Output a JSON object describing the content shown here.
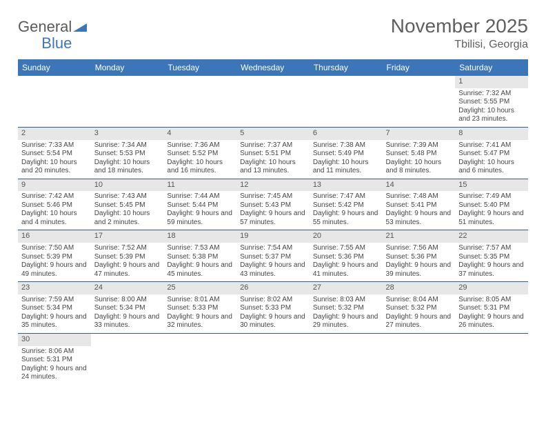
{
  "brand": {
    "part1": "General",
    "part2": "Blue"
  },
  "title": "November 2025",
  "location": "Tbilisi, Georgia",
  "colors": {
    "header_bg": "#3d76b8",
    "row_divider": "#2f5c94",
    "daynum_bg": "#e7e7e7"
  },
  "dayHeaders": [
    "Sunday",
    "Monday",
    "Tuesday",
    "Wednesday",
    "Thursday",
    "Friday",
    "Saturday"
  ],
  "weeks": [
    [
      null,
      null,
      null,
      null,
      null,
      null,
      {
        "n": "1",
        "sr": "7:32 AM",
        "ss": "5:55 PM",
        "dl": "10 hours and 23 minutes."
      }
    ],
    [
      {
        "n": "2",
        "sr": "7:33 AM",
        "ss": "5:54 PM",
        "dl": "10 hours and 20 minutes."
      },
      {
        "n": "3",
        "sr": "7:34 AM",
        "ss": "5:53 PM",
        "dl": "10 hours and 18 minutes."
      },
      {
        "n": "4",
        "sr": "7:36 AM",
        "ss": "5:52 PM",
        "dl": "10 hours and 16 minutes."
      },
      {
        "n": "5",
        "sr": "7:37 AM",
        "ss": "5:51 PM",
        "dl": "10 hours and 13 minutes."
      },
      {
        "n": "6",
        "sr": "7:38 AM",
        "ss": "5:49 PM",
        "dl": "10 hours and 11 minutes."
      },
      {
        "n": "7",
        "sr": "7:39 AM",
        "ss": "5:48 PM",
        "dl": "10 hours and 8 minutes."
      },
      {
        "n": "8",
        "sr": "7:41 AM",
        "ss": "5:47 PM",
        "dl": "10 hours and 6 minutes."
      }
    ],
    [
      {
        "n": "9",
        "sr": "7:42 AM",
        "ss": "5:46 PM",
        "dl": "10 hours and 4 minutes."
      },
      {
        "n": "10",
        "sr": "7:43 AM",
        "ss": "5:45 PM",
        "dl": "10 hours and 2 minutes."
      },
      {
        "n": "11",
        "sr": "7:44 AM",
        "ss": "5:44 PM",
        "dl": "9 hours and 59 minutes."
      },
      {
        "n": "12",
        "sr": "7:45 AM",
        "ss": "5:43 PM",
        "dl": "9 hours and 57 minutes."
      },
      {
        "n": "13",
        "sr": "7:47 AM",
        "ss": "5:42 PM",
        "dl": "9 hours and 55 minutes."
      },
      {
        "n": "14",
        "sr": "7:48 AM",
        "ss": "5:41 PM",
        "dl": "9 hours and 53 minutes."
      },
      {
        "n": "15",
        "sr": "7:49 AM",
        "ss": "5:40 PM",
        "dl": "9 hours and 51 minutes."
      }
    ],
    [
      {
        "n": "16",
        "sr": "7:50 AM",
        "ss": "5:39 PM",
        "dl": "9 hours and 49 minutes."
      },
      {
        "n": "17",
        "sr": "7:52 AM",
        "ss": "5:39 PM",
        "dl": "9 hours and 47 minutes."
      },
      {
        "n": "18",
        "sr": "7:53 AM",
        "ss": "5:38 PM",
        "dl": "9 hours and 45 minutes."
      },
      {
        "n": "19",
        "sr": "7:54 AM",
        "ss": "5:37 PM",
        "dl": "9 hours and 43 minutes."
      },
      {
        "n": "20",
        "sr": "7:55 AM",
        "ss": "5:36 PM",
        "dl": "9 hours and 41 minutes."
      },
      {
        "n": "21",
        "sr": "7:56 AM",
        "ss": "5:36 PM",
        "dl": "9 hours and 39 minutes."
      },
      {
        "n": "22",
        "sr": "7:57 AM",
        "ss": "5:35 PM",
        "dl": "9 hours and 37 minutes."
      }
    ],
    [
      {
        "n": "23",
        "sr": "7:59 AM",
        "ss": "5:34 PM",
        "dl": "9 hours and 35 minutes."
      },
      {
        "n": "24",
        "sr": "8:00 AM",
        "ss": "5:34 PM",
        "dl": "9 hours and 33 minutes."
      },
      {
        "n": "25",
        "sr": "8:01 AM",
        "ss": "5:33 PM",
        "dl": "9 hours and 32 minutes."
      },
      {
        "n": "26",
        "sr": "8:02 AM",
        "ss": "5:33 PM",
        "dl": "9 hours and 30 minutes."
      },
      {
        "n": "27",
        "sr": "8:03 AM",
        "ss": "5:32 PM",
        "dl": "9 hours and 29 minutes."
      },
      {
        "n": "28",
        "sr": "8:04 AM",
        "ss": "5:32 PM",
        "dl": "9 hours and 27 minutes."
      },
      {
        "n": "29",
        "sr": "8:05 AM",
        "ss": "5:31 PM",
        "dl": "9 hours and 26 minutes."
      }
    ],
    [
      {
        "n": "30",
        "sr": "8:06 AM",
        "ss": "5:31 PM",
        "dl": "9 hours and 24 minutes."
      },
      null,
      null,
      null,
      null,
      null,
      null
    ]
  ],
  "labels": {
    "sunrise": "Sunrise:",
    "sunset": "Sunset:",
    "daylight": "Daylight:"
  }
}
